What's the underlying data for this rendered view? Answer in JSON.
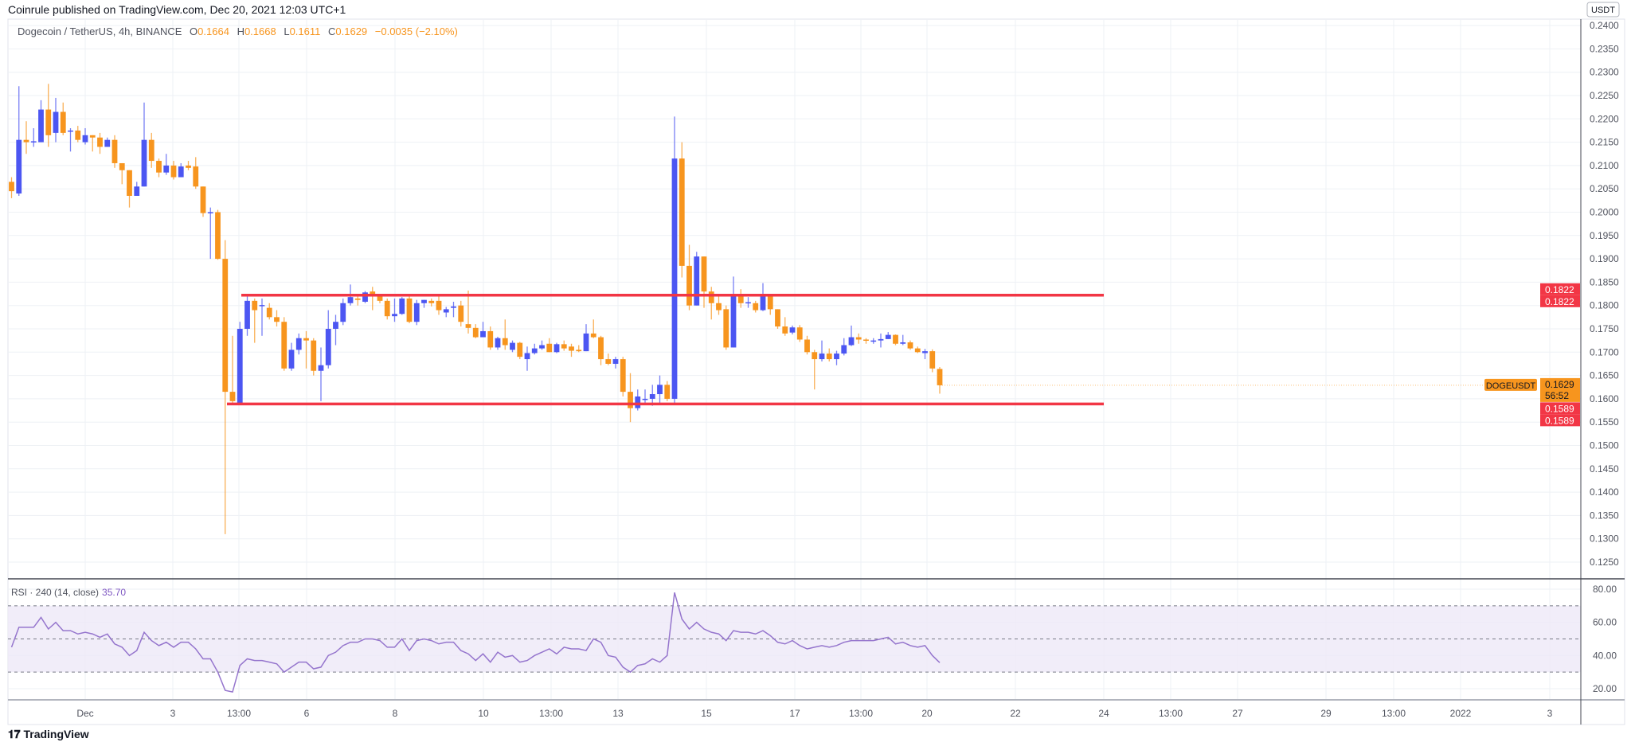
{
  "header": {
    "published": "Coinrule published on TradingView.com, Dec 20, 2021 12:03 UTC+1",
    "symbol": "Dogecoin / TetherUS, 4h, BINANCE",
    "o_label": "O",
    "o": "0.1664",
    "h_label": "H",
    "h": "0.1668",
    "l_label": "L",
    "l": "0.1611",
    "c_label": "C",
    "c": "0.1629",
    "change": "−0.0035 (−2.10%)"
  },
  "rsi": {
    "label": "RSI · 240 (14, close)",
    "value": "35.70"
  },
  "footer": {
    "logo": "TradingView"
  },
  "colors": {
    "up": "#4c56f2",
    "down": "#f7951e",
    "level": "#f23645",
    "rsi": "#9575cd",
    "band": "#ede8f8"
  },
  "chart_data": [
    {
      "type": "candlestick",
      "title": "Dogecoin / TetherUS, 4h, BINANCE",
      "ylabel": "USDT",
      "ylim": [
        0.1225,
        0.24
      ],
      "grid": true,
      "yticks": [
        "0.2400",
        "0.2350",
        "0.2300",
        "0.2250",
        "0.2200",
        "0.2150",
        "0.2100",
        "0.2050",
        "0.2000",
        "0.1950",
        "0.1900",
        "0.1850",
        "0.1800",
        "0.1750",
        "0.1700",
        "0.1650",
        "0.1600",
        "0.1550",
        "0.1500",
        "0.1450",
        "0.1400",
        "0.1350",
        "0.1300",
        "0.1250"
      ],
      "xticks": [
        "Dec",
        "3",
        "13:00",
        "6",
        "8",
        "10",
        "13:00",
        "13",
        "15",
        "17",
        "13:00",
        "20",
        "22",
        "24",
        "13:00",
        "27",
        "29",
        "13:00",
        "2022",
        "3"
      ],
      "candles_ohlc": [
        [
          0.2065,
          0.2075,
          0.203,
          0.2045
        ],
        [
          0.204,
          0.227,
          0.2035,
          0.2155
        ],
        [
          0.2155,
          0.2195,
          0.2125,
          0.215
        ],
        [
          0.215,
          0.218,
          0.214,
          0.2152
        ],
        [
          0.215,
          0.224,
          0.215,
          0.222
        ],
        [
          0.222,
          0.2275,
          0.214,
          0.2165
        ],
        [
          0.217,
          0.2245,
          0.215,
          0.2215
        ],
        [
          0.2215,
          0.2235,
          0.2165,
          0.217
        ],
        [
          0.2175,
          0.218,
          0.213,
          0.2175
        ],
        [
          0.2175,
          0.2185,
          0.215,
          0.2155
        ],
        [
          0.215,
          0.218,
          0.2145,
          0.2165
        ],
        [
          0.2165,
          0.2165,
          0.213,
          0.216
        ],
        [
          0.216,
          0.217,
          0.2125,
          0.214
        ],
        [
          0.214,
          0.216,
          0.214,
          0.2155
        ],
        [
          0.2155,
          0.2165,
          0.2095,
          0.2105
        ],
        [
          0.2105,
          0.2105,
          0.206,
          0.209
        ],
        [
          0.209,
          0.209,
          0.201,
          0.2035
        ],
        [
          0.2035,
          0.2065,
          0.2035,
          0.2055
        ],
        [
          0.2055,
          0.2235,
          0.2055,
          0.2155
        ],
        [
          0.2155,
          0.217,
          0.2095,
          0.211
        ],
        [
          0.211,
          0.2115,
          0.2075,
          0.2085
        ],
        [
          0.2085,
          0.2125,
          0.208,
          0.21
        ],
        [
          0.21,
          0.211,
          0.207,
          0.2075
        ],
        [
          0.2075,
          0.2105,
          0.2075,
          0.2098
        ],
        [
          0.21,
          0.211,
          0.209,
          0.2095
        ],
        [
          0.2098,
          0.2118,
          0.205,
          0.2055
        ],
        [
          0.2055,
          0.2055,
          0.199,
          0.1998
        ],
        [
          0.1998,
          0.201,
          0.19,
          0.2
        ],
        [
          0.2,
          0.2005,
          0.1898,
          0.19
        ],
        [
          0.19,
          0.194,
          0.131,
          0.1615
        ],
        [
          0.1615,
          0.1735,
          0.159,
          0.1595
        ],
        [
          0.159,
          0.1765,
          0.159,
          0.175
        ],
        [
          0.175,
          0.1825,
          0.1735,
          0.181
        ],
        [
          0.181,
          0.1815,
          0.172,
          0.179
        ],
        [
          0.18,
          0.1815,
          0.1735,
          0.1801
        ],
        [
          0.1795,
          0.1805,
          0.177,
          0.1775
        ],
        [
          0.1775,
          0.179,
          0.1755,
          0.1765
        ],
        [
          0.1765,
          0.1775,
          0.166,
          0.1665
        ],
        [
          0.1665,
          0.172,
          0.166,
          0.1705
        ],
        [
          0.1705,
          0.174,
          0.1695,
          0.173
        ],
        [
          0.173,
          0.1745,
          0.1665,
          0.1725
        ],
        [
          0.1725,
          0.173,
          0.165,
          0.166
        ],
        [
          0.166,
          0.171,
          0.1595,
          0.1672
        ],
        [
          0.1672,
          0.179,
          0.1665,
          0.175
        ],
        [
          0.175,
          0.178,
          0.1715,
          0.1765
        ],
        [
          0.1765,
          0.1815,
          0.1758,
          0.1805
        ],
        [
          0.1805,
          0.1845,
          0.18,
          0.1818
        ],
        [
          0.1815,
          0.1822,
          0.18,
          0.1812
        ],
        [
          0.1808,
          0.1831,
          0.1805,
          0.1828
        ],
        [
          0.183,
          0.184,
          0.179,
          0.1825
        ],
        [
          0.1825,
          0.1825,
          0.1805,
          0.181
        ],
        [
          0.181,
          0.1815,
          0.177,
          0.1777
        ],
        [
          0.1777,
          0.1815,
          0.1765,
          0.1782
        ],
        [
          0.1782,
          0.1818,
          0.178,
          0.1815
        ],
        [
          0.1815,
          0.1822,
          0.1762,
          0.1765
        ],
        [
          0.1765,
          0.1812,
          0.1758,
          0.1805
        ],
        [
          0.1805,
          0.1812,
          0.1795,
          0.1812
        ],
        [
          0.181,
          0.1815,
          0.1798,
          0.1805
        ],
        [
          0.181,
          0.1822,
          0.178,
          0.179
        ],
        [
          0.1785,
          0.1797,
          0.1775,
          0.1792
        ],
        [
          0.1795,
          0.1808,
          0.1775,
          0.1798
        ],
        [
          0.18,
          0.181,
          0.1755,
          0.1765
        ],
        [
          0.176,
          0.1832,
          0.174,
          0.1752
        ],
        [
          0.1752,
          0.176,
          0.173,
          0.1732
        ],
        [
          0.1732,
          0.1765,
          0.1732,
          0.1745
        ],
        [
          0.1745,
          0.1755,
          0.1705,
          0.171
        ],
        [
          0.171,
          0.1733,
          0.1705,
          0.173
        ],
        [
          0.173,
          0.177,
          0.1705,
          0.1715
        ],
        [
          0.1705,
          0.1725,
          0.17,
          0.172
        ],
        [
          0.172,
          0.1722,
          0.1685,
          0.169
        ],
        [
          0.1685,
          0.1712,
          0.166,
          0.1698
        ],
        [
          0.1698,
          0.1718,
          0.1695,
          0.1708
        ],
        [
          0.1708,
          0.1725,
          0.1705,
          0.1715
        ],
        [
          0.1718,
          0.173,
          0.17,
          0.17
        ],
        [
          0.17,
          0.172,
          0.1698,
          0.1717
        ],
        [
          0.1717,
          0.1725,
          0.1703,
          0.1708
        ],
        [
          0.1712,
          0.1718,
          0.169,
          0.1703
        ],
        [
          0.1705,
          0.1715,
          0.17,
          0.1702
        ],
        [
          0.1702,
          0.176,
          0.1702,
          0.174
        ],
        [
          0.174,
          0.177,
          0.173,
          0.1732
        ],
        [
          0.1732,
          0.1735,
          0.1672,
          0.1685
        ],
        [
          0.1685,
          0.1697,
          0.1672,
          0.1675
        ],
        [
          0.1675,
          0.169,
          0.1665,
          0.1685
        ],
        [
          0.1685,
          0.169,
          0.1605,
          0.1615
        ],
        [
          0.1615,
          0.1655,
          0.155,
          0.158
        ],
        [
          0.158,
          0.162,
          0.1575,
          0.1605
        ],
        [
          0.1598,
          0.162,
          0.159,
          0.16
        ],
        [
          0.16,
          0.163,
          0.1585,
          0.161
        ],
        [
          0.161,
          0.165,
          0.159,
          0.163
        ],
        [
          0.163,
          0.1638,
          0.1595,
          0.16
        ],
        [
          0.16,
          0.2205,
          0.159,
          0.2115
        ],
        [
          0.2115,
          0.215,
          0.186,
          0.1885
        ],
        [
          0.1885,
          0.193,
          0.179,
          0.18
        ],
        [
          0.18,
          0.1915,
          0.18,
          0.1905
        ],
        [
          0.1905,
          0.1905,
          0.1795,
          0.183
        ],
        [
          0.183,
          0.184,
          0.177,
          0.1805
        ],
        [
          0.1805,
          0.182,
          0.178,
          0.179
        ],
        [
          0.1792,
          0.18,
          0.1705,
          0.171
        ],
        [
          0.171,
          0.1862,
          0.171,
          0.182
        ],
        [
          0.182,
          0.1835,
          0.1795,
          0.1805
        ],
        [
          0.1806,
          0.1818,
          0.1795,
          0.1807
        ],
        [
          0.1805,
          0.181,
          0.1785,
          0.179
        ],
        [
          0.179,
          0.1848,
          0.1788,
          0.1825
        ],
        [
          0.182,
          0.1822,
          0.178,
          0.1792
        ],
        [
          0.1792,
          0.1792,
          0.175,
          0.1755
        ],
        [
          0.1755,
          0.1775,
          0.1735,
          0.174
        ],
        [
          0.1742,
          0.1757,
          0.1738,
          0.1753
        ],
        [
          0.1753,
          0.1758,
          0.1722,
          0.1727
        ],
        [
          0.1727,
          0.1735,
          0.1695,
          0.17
        ],
        [
          0.17,
          0.1705,
          0.162,
          0.1685
        ],
        [
          0.1685,
          0.1725,
          0.168,
          0.1697
        ],
        [
          0.1697,
          0.1708,
          0.168,
          0.1685
        ],
        [
          0.1685,
          0.1703,
          0.1672,
          0.1697
        ],
        [
          0.1697,
          0.173,
          0.1693,
          0.1715
        ],
        [
          0.1715,
          0.1757,
          0.1713,
          0.1732
        ],
        [
          0.1732,
          0.174,
          0.1718,
          0.1727
        ],
        [
          0.1727,
          0.173,
          0.1718,
          0.1725
        ],
        [
          0.1723,
          0.173,
          0.1718,
          0.1725
        ],
        [
          0.1725,
          0.174,
          0.171,
          0.1728
        ],
        [
          0.1728,
          0.1743,
          0.1728,
          0.1737
        ],
        [
          0.1737,
          0.1738,
          0.1715,
          0.1718
        ],
        [
          0.1718,
          0.1737,
          0.1715,
          0.1721
        ],
        [
          0.1721,
          0.1725,
          0.1705,
          0.1708
        ],
        [
          0.1708,
          0.1712,
          0.1698,
          0.17
        ],
        [
          0.1698,
          0.1707,
          0.1685,
          0.1702
        ],
        [
          0.1702,
          0.1706,
          0.1657,
          0.1665
        ],
        [
          0.1664,
          0.1668,
          0.1611,
          0.1629
        ]
      ],
      "levels": [
        {
          "value": 0.1822,
          "label": "0.1822"
        },
        {
          "value": 0.1589,
          "label": "0.1589"
        }
      ],
      "last_price": {
        "symbol": "DOGEUSDT",
        "value": "0.1629",
        "countdown": "56:52"
      }
    },
    {
      "type": "line",
      "title": "RSI · 240 (14, close)",
      "ylim": [
        10,
        85
      ],
      "yticks": [
        "80.00",
        "60.00",
        "40.00",
        "20.00"
      ],
      "bands": [
        30,
        50,
        70
      ],
      "values": [
        45,
        57,
        57,
        57,
        63,
        56,
        60,
        55,
        55,
        53,
        54,
        53,
        51,
        53,
        47,
        45,
        40,
        43,
        54,
        49,
        46,
        48,
        45,
        48,
        48,
        44,
        38,
        38,
        30,
        19,
        18,
        34,
        38,
        37,
        37,
        36,
        35,
        30,
        33,
        36,
        36,
        32,
        33,
        40,
        42,
        46,
        48,
        48,
        50,
        50,
        49,
        45,
        45,
        50,
        43,
        49,
        50,
        49,
        47,
        48,
        48,
        43,
        41,
        37,
        41,
        36,
        42,
        39,
        40,
        36,
        37,
        40,
        42,
        44,
        41,
        45,
        44,
        44,
        43,
        50,
        48,
        40,
        39,
        33,
        30,
        34,
        35,
        38,
        36,
        40,
        78,
        62,
        56,
        60,
        56,
        54,
        53,
        49,
        55,
        54,
        54,
        53,
        55,
        52,
        48,
        47,
        49,
        46,
        44,
        45,
        46,
        45,
        46,
        48,
        49,
        49,
        49,
        49,
        50,
        51,
        47,
        48,
        46,
        45,
        46,
        40,
        35.7
      ]
    }
  ]
}
